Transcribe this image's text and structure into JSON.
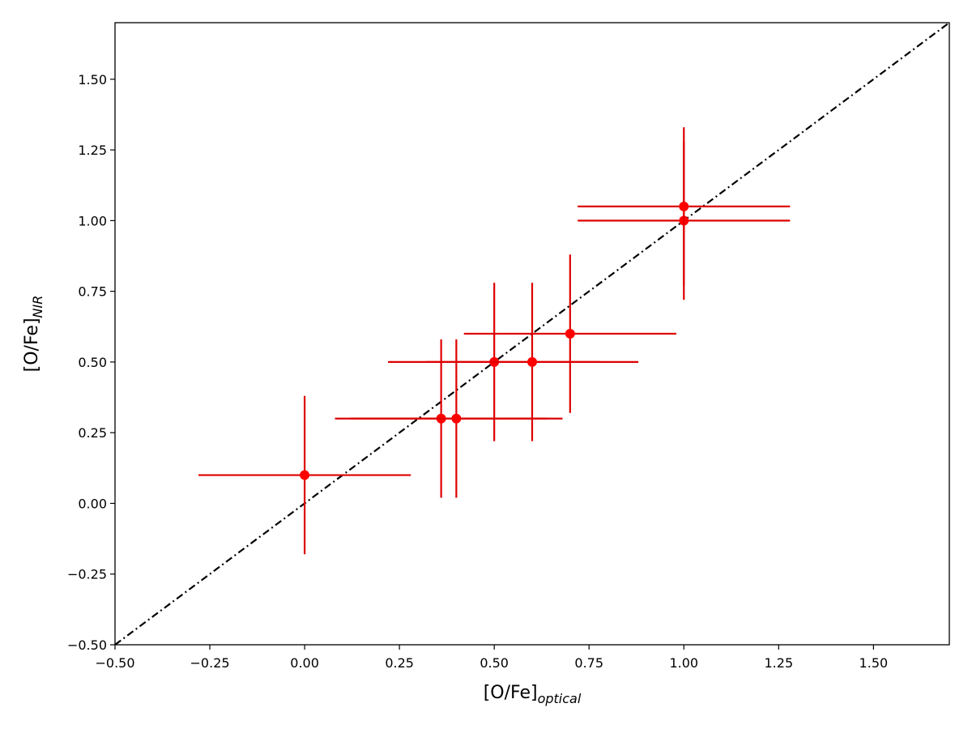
{
  "chart_data": {
    "type": "scatter",
    "xlabel": {
      "main": "[O/Fe]",
      "sub": "optical"
    },
    "ylabel": {
      "main": "[O/Fe]",
      "sub": "NIR"
    },
    "xlim": [
      -0.5,
      1.7
    ],
    "ylim": [
      -0.5,
      1.7
    ],
    "x_ticks": [
      -0.5,
      -0.25,
      0.0,
      0.25,
      0.5,
      0.75,
      1.0,
      1.25,
      1.5
    ],
    "x_tick_labels": [
      "−0.50",
      "−0.25",
      "0.00",
      "0.25",
      "0.50",
      "0.75",
      "1.00",
      "1.25",
      "1.50"
    ],
    "y_ticks": [
      -0.5,
      -0.25,
      0.0,
      0.25,
      0.5,
      0.75,
      1.0,
      1.25,
      1.5
    ],
    "y_tick_labels": [
      "−0.50",
      "−0.25",
      "0.00",
      "0.25",
      "0.50",
      "0.75",
      "1.00",
      "1.25",
      "1.50"
    ],
    "grid": false,
    "marker_color": "#ff0000",
    "errorbar_color": "#dd0000",
    "reference_line": {
      "style": "dash-dot",
      "color": "#000000",
      "slope": 1,
      "intercept": 0
    },
    "points": [
      {
        "x": 0.0,
        "y": 0.1,
        "xerr": 0.28,
        "yerr": 0.28
      },
      {
        "x": 0.36,
        "y": 0.3,
        "xerr": 0.28,
        "yerr": 0.28
      },
      {
        "x": 0.4,
        "y": 0.3,
        "xerr": 0.28,
        "yerr": 0.28
      },
      {
        "x": 0.5,
        "y": 0.5,
        "xerr": 0.28,
        "yerr": 0.28
      },
      {
        "x": 0.6,
        "y": 0.5,
        "xerr": 0.28,
        "yerr": 0.28
      },
      {
        "x": 0.7,
        "y": 0.6,
        "xerr": 0.28,
        "yerr": 0.28
      },
      {
        "x": 1.0,
        "y": 1.0,
        "xerr": 0.28,
        "yerr": 0.28
      },
      {
        "x": 1.0,
        "y": 1.05,
        "xerr": 0.28,
        "yerr": 0.28
      }
    ]
  }
}
